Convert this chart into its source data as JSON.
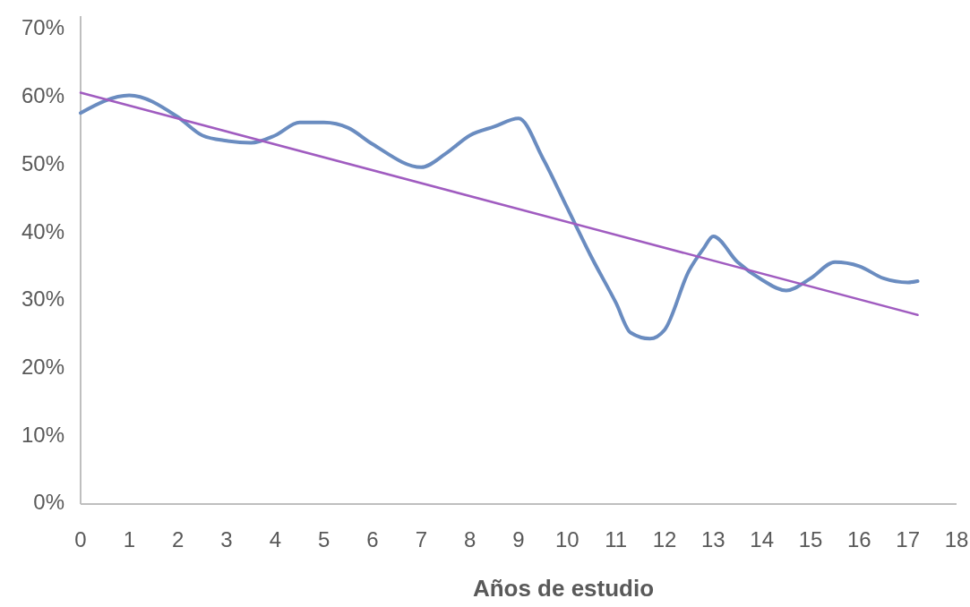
{
  "chart_data": {
    "type": "line",
    "xlabel": "Años de estudio",
    "xlim": [
      0,
      18
    ],
    "xticks": [
      0,
      1,
      2,
      3,
      4,
      5,
      6,
      7,
      8,
      9,
      10,
      11,
      12,
      13,
      14,
      15,
      16,
      17,
      18
    ],
    "ylim": [
      0,
      72
    ],
    "yticks": [
      {
        "value": 0,
        "label": "0%"
      },
      {
        "value": 10,
        "label": "10%"
      },
      {
        "value": 20,
        "label": "20%"
      },
      {
        "value": 30,
        "label": "30%"
      },
      {
        "value": 40,
        "label": "40%"
      },
      {
        "value": 50,
        "label": "50%"
      },
      {
        "value": 60,
        "label": "60%"
      },
      {
        "value": 70,
        "label": "70%"
      }
    ],
    "grid": false,
    "marker": "none",
    "line_style": "solid",
    "series": [
      {
        "color": "#6a8cc0",
        "x": [
          0,
          1,
          2,
          2.5,
          3,
          3.5,
          4,
          4.5,
          5,
          5.5,
          6,
          7,
          7.5,
          8,
          8.5,
          9,
          9.5,
          10,
          10.5,
          11,
          11.3,
          11.7,
          12,
          12.5,
          12.8,
          13,
          13.5,
          14,
          14.5,
          15,
          15.5,
          16,
          16.5,
          17,
          17.2
        ],
        "values": [
          57.7,
          60.3,
          57.1,
          54.4,
          53.6,
          53.3,
          54.4,
          56.3,
          56.3,
          55.5,
          53.1,
          49.7,
          51.7,
          54.4,
          55.7,
          56.9,
          51,
          43.7,
          36.4,
          29.7,
          25.3,
          24.4,
          25.7,
          34.4,
          37.7,
          39.5,
          35.7,
          33.1,
          31.5,
          33.3,
          35.7,
          35.1,
          33.3,
          32.7,
          32.9
        ]
      },
      {
        "color": "#a05cc0",
        "x": [
          0,
          17.2
        ],
        "values": [
          60.7,
          27.9
        ]
      }
    ]
  }
}
